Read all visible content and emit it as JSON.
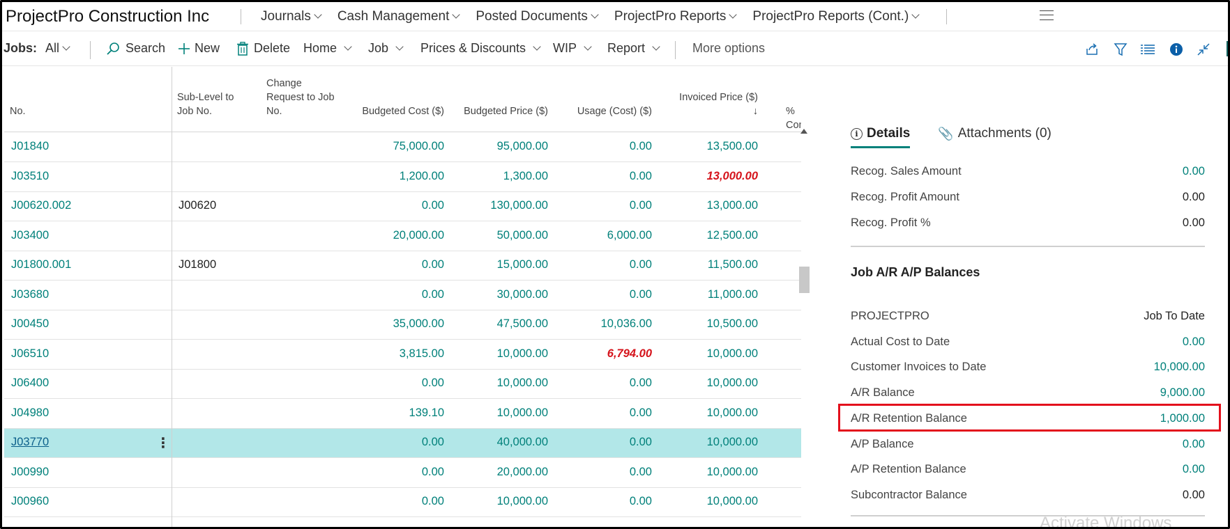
{
  "app": {
    "company": "ProjectPro Construction Inc",
    "nav": [
      "Journals",
      "Cash Management",
      "Posted Documents",
      "ProjectPro Reports",
      "ProjectPro Reports (Cont.)"
    ]
  },
  "actionbar": {
    "filter_label": "Jobs:",
    "filter_value": "All",
    "search": "Search",
    "new": "New",
    "delete": "Delete",
    "home": "Home",
    "job": "Job",
    "prices": "Prices & Discounts",
    "wip": "WIP",
    "report": "Report",
    "more": "More options",
    "right_icons": [
      "share-icon",
      "filter-icon",
      "list-view-icon",
      "info-icon",
      "collapse-icon"
    ]
  },
  "grid": {
    "headers": {
      "no": "No.",
      "sub_level": [
        "Sub-Level to",
        "Job No."
      ],
      "change_req": [
        "Change",
        "Request to Job",
        "No."
      ],
      "budgeted_cost": "Budgeted Cost ($)",
      "budgeted_price": "Budgeted Price ($)",
      "usage_cost": "Usage (Cost) ($)",
      "invoiced_price": "Invoiced Price ($)",
      "invoiced_sort": "↓",
      "pct_complete": "% Com"
    },
    "rows": [
      {
        "no": "J01840",
        "sub": "",
        "bc": "75,000.00",
        "bp": "95,000.00",
        "us": "0.00",
        "ip": "13,500.00"
      },
      {
        "no": "J03510",
        "sub": "",
        "bc": "1,200.00",
        "bp": "1,300.00",
        "us": "0.00",
        "ip": "13,000.00"
      },
      {
        "no": "J00620.002",
        "sub": "J00620",
        "bc": "0.00",
        "bp": "130,000.00",
        "us": "0.00",
        "ip": "13,000.00"
      },
      {
        "no": "J03400",
        "sub": "",
        "bc": "20,000.00",
        "bp": "50,000.00",
        "us": "6,000.00",
        "ip": "12,500.00"
      },
      {
        "no": "J01800.001",
        "sub": "J01800",
        "bc": "0.00",
        "bp": "15,000.00",
        "us": "0.00",
        "ip": "11,500.00"
      },
      {
        "no": "J03680",
        "sub": "",
        "bc": "0.00",
        "bp": "30,000.00",
        "us": "0.00",
        "ip": "11,000.00"
      },
      {
        "no": "J00450",
        "sub": "",
        "bc": "35,000.00",
        "bp": "47,500.00",
        "us": "10,036.00",
        "ip": "10,500.00"
      },
      {
        "no": "J06510",
        "sub": "",
        "bc": "3,815.00",
        "bp": "10,000.00",
        "us": "6,794.00",
        "ip": "10,000.00"
      },
      {
        "no": "J06400",
        "sub": "",
        "bc": "0.00",
        "bp": "10,000.00",
        "us": "0.00",
        "ip": "10,000.00"
      },
      {
        "no": "J04980",
        "sub": "",
        "bc": "139.10",
        "bp": "10,000.00",
        "us": "0.00",
        "ip": "10,000.00"
      },
      {
        "no": "J03770",
        "sub": "",
        "bc": "0.00",
        "bp": "40,000.00",
        "us": "0.00",
        "ip": "10,000.00"
      },
      {
        "no": "J00990",
        "sub": "",
        "bc": "0.00",
        "bp": "20,000.00",
        "us": "0.00",
        "ip": "10,000.00"
      },
      {
        "no": "J00960",
        "sub": "",
        "bc": "0.00",
        "bp": "10,000.00",
        "us": "0.00",
        "ip": "10,000.00"
      }
    ],
    "selected_row": 10,
    "row_actions": "⋮"
  },
  "details": {
    "tab_details": "Details",
    "tab_attachments": "Attachments (0)",
    "recog_sales_label": "Recog. Sales Amount",
    "recog_sales_value": "0.00",
    "recog_profit_label": "Recog. Profit Amount",
    "recog_profit_value": "0.00",
    "recog_profit_pct_label": "Recog. Profit %",
    "recog_profit_pct_value": "0.00",
    "section_title": "Job A/R A/P Balances",
    "col_left": "PROJECTPRO",
    "col_right": "Job To Date",
    "actual_cost_label": "Actual Cost to Date",
    "actual_cost_value": "0.00",
    "cust_inv_label": "Customer Invoices to Date",
    "cust_inv_value": "10,000.00",
    "ar_balance_label": "A/R Balance",
    "ar_balance_value": "9,000.00",
    "ar_ret_label": "A/R Retention Balance",
    "ar_ret_value": "1,000.00",
    "ap_balance_label": "A/P Balance",
    "ap_balance_value": "0.00",
    "ap_ret_label": "A/P Retention Balance",
    "ap_ret_value": "0.00",
    "sub_balance_label": "Subcontractor Balance",
    "sub_balance_value": "0.00"
  },
  "watermark": "Activate Windows",
  "colors": {
    "accent": "#00807a",
    "selected_row": "#b2e7e8",
    "negative": "#d5141c",
    "highlight_box": "#e3101c"
  }
}
